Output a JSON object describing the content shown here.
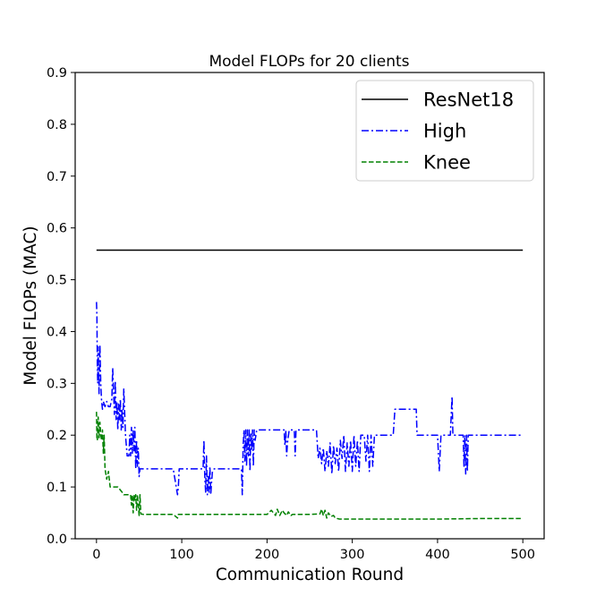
{
  "chart_data": {
    "type": "line",
    "title": "Model FLOPs for 20 clients",
    "xlabel": "Communication Round",
    "ylabel": "Model FLOPs (MAC)",
    "xlim": [
      -25,
      525
    ],
    "ylim": [
      0,
      0.9
    ],
    "xticks": [
      0,
      100,
      200,
      300,
      400,
      500
    ],
    "xtick_labels": [
      "0",
      "100",
      "200",
      "300",
      "400",
      "500"
    ],
    "yticks": [
      0,
      0.1,
      0.2,
      0.3,
      0.4,
      0.5,
      0.6,
      0.7,
      0.8,
      0.9
    ],
    "ytick_labels": [
      "0.0",
      "0.1",
      "0.2",
      "0.3",
      "0.4",
      "0.5",
      "0.6",
      "0.7",
      "0.8",
      "0.9"
    ],
    "grid": false,
    "legend_position": "top-right",
    "series": [
      {
        "name": "ResNet18",
        "color": "#000000",
        "style": "solid",
        "x": [
          0,
          500
        ],
        "y": [
          0.557,
          0.557
        ]
      },
      {
        "name": "High",
        "color": "#0000ff",
        "style": "dashdot",
        "x": [
          0,
          0.5,
          1,
          1.5,
          2,
          3,
          4,
          5,
          6,
          7,
          8,
          10,
          12,
          14,
          16,
          18,
          19,
          20,
          21,
          22,
          23,
          24,
          25,
          26,
          27,
          28,
          29,
          30,
          31,
          32,
          34,
          36,
          38,
          39,
          40,
          41,
          42,
          43,
          44,
          45,
          46,
          47,
          48,
          49,
          50,
          51,
          52,
          55,
          60,
          70,
          80,
          90,
          95,
          96,
          97,
          100,
          110,
          120,
          125,
          126,
          127,
          128,
          129,
          130,
          131,
          132,
          133,
          134,
          135,
          136,
          138,
          140,
          150,
          160,
          170,
          171,
          172,
          173,
          174,
          175,
          176,
          177,
          178,
          179,
          180,
          181,
          182,
          183,
          184,
          185,
          186,
          188,
          190,
          200,
          210,
          220,
          221,
          222,
          223,
          224,
          226,
          228,
          230,
          232,
          233,
          234,
          236,
          240,
          250,
          258,
          260,
          262,
          264,
          266,
          268,
          270,
          272,
          274,
          276,
          278,
          280,
          282,
          284,
          286,
          288,
          290,
          292,
          294,
          296,
          298,
          300,
          302,
          304,
          306,
          308,
          310,
          312,
          314,
          316,
          318,
          320,
          322,
          324,
          326,
          330,
          340,
          348,
          350,
          360,
          370,
          375,
          376,
          380,
          390,
          400,
          402,
          404,
          406,
          410,
          415,
          417,
          418,
          419,
          420,
          425,
          430,
          431,
          432,
          433,
          434,
          435,
          436,
          440,
          460,
          480,
          500
        ],
        "y": [
          0.457,
          0.43,
          0.33,
          0.3,
          0.37,
          0.28,
          0.375,
          0.3,
          0.265,
          0.25,
          0.265,
          0.255,
          0.265,
          0.255,
          0.255,
          0.27,
          0.33,
          0.285,
          0.24,
          0.305,
          0.23,
          0.265,
          0.21,
          0.26,
          0.23,
          0.27,
          0.21,
          0.25,
          0.215,
          0.29,
          0.2,
          0.16,
          0.16,
          0.2,
          0.16,
          0.215,
          0.165,
          0.21,
          0.17,
          0.215,
          0.135,
          0.19,
          0.14,
          0.175,
          0.12,
          0.135,
          0.135,
          0.135,
          0.135,
          0.135,
          0.135,
          0.135,
          0.085,
          0.1,
          0.135,
          0.135,
          0.135,
          0.135,
          0.135,
          0.19,
          0.12,
          0.09,
          0.16,
          0.085,
          0.12,
          0.09,
          0.14,
          0.085,
          0.11,
          0.13,
          0.135,
          0.135,
          0.135,
          0.135,
          0.135,
          0.085,
          0.18,
          0.21,
          0.15,
          0.21,
          0.14,
          0.21,
          0.16,
          0.21,
          0.13,
          0.205,
          0.17,
          0.21,
          0.14,
          0.21,
          0.19,
          0.21,
          0.21,
          0.21,
          0.21,
          0.21,
          0.18,
          0.21,
          0.16,
          0.185,
          0.21,
          0.21,
          0.21,
          0.21,
          0.16,
          0.21,
          0.21,
          0.21,
          0.21,
          0.21,
          0.155,
          0.175,
          0.145,
          0.175,
          0.13,
          0.17,
          0.14,
          0.185,
          0.125,
          0.18,
          0.145,
          0.175,
          0.13,
          0.19,
          0.155,
          0.2,
          0.13,
          0.185,
          0.14,
          0.19,
          0.13,
          0.2,
          0.14,
          0.19,
          0.13,
          0.2,
          0.2,
          0.2,
          0.15,
          0.2,
          0.13,
          0.2,
          0.14,
          0.2,
          0.2,
          0.2,
          0.2,
          0.25,
          0.25,
          0.25,
          0.25,
          0.2,
          0.2,
          0.2,
          0.2,
          0.13,
          0.2,
          0.2,
          0.2,
          0.2,
          0.275,
          0.2,
          0.2,
          0.2,
          0.2,
          0.2,
          0.14,
          0.2,
          0.125,
          0.2,
          0.13,
          0.2,
          0.2,
          0.2,
          0.2,
          0.2
        ]
      },
      {
        "name": "Knee",
        "color": "#008000",
        "style": "dashed",
        "x": [
          0,
          0.5,
          1,
          2,
          3,
          4,
          5,
          6,
          7,
          8,
          9,
          10,
          12,
          14,
          16,
          18,
          20,
          25,
          30,
          32,
          35,
          38,
          40,
          41,
          42,
          43,
          44,
          45,
          46,
          47,
          48,
          49,
          50,
          51,
          52,
          55,
          60,
          70,
          80,
          90,
          95,
          96,
          97,
          100,
          150,
          200,
          205,
          210,
          212,
          215,
          218,
          220,
          223,
          225,
          228,
          230,
          250,
          262,
          264,
          266,
          268,
          270,
          272,
          275,
          278,
          280,
          285,
          290,
          300,
          350,
          400,
          450,
          500
        ],
        "y": [
          0.245,
          0.195,
          0.19,
          0.235,
          0.195,
          0.225,
          0.2,
          0.19,
          0.21,
          0.165,
          0.2,
          0.135,
          0.115,
          0.13,
          0.1,
          0.1,
          0.1,
          0.1,
          0.09,
          0.085,
          0.085,
          0.085,
          0.085,
          0.065,
          0.085,
          0.05,
          0.085,
          0.075,
          0.085,
          0.055,
          0.085,
          0.065,
          0.045,
          0.085,
          0.048,
          0.047,
          0.047,
          0.047,
          0.047,
          0.047,
          0.04,
          0.047,
          0.047,
          0.047,
          0.047,
          0.047,
          0.055,
          0.045,
          0.057,
          0.045,
          0.055,
          0.05,
          0.045,
          0.052,
          0.045,
          0.047,
          0.047,
          0.048,
          0.057,
          0.045,
          0.055,
          0.04,
          0.05,
          0.043,
          0.045,
          0.04,
          0.038,
          0.038,
          0.038,
          0.038,
          0.038,
          0.039,
          0.039
        ]
      }
    ]
  }
}
